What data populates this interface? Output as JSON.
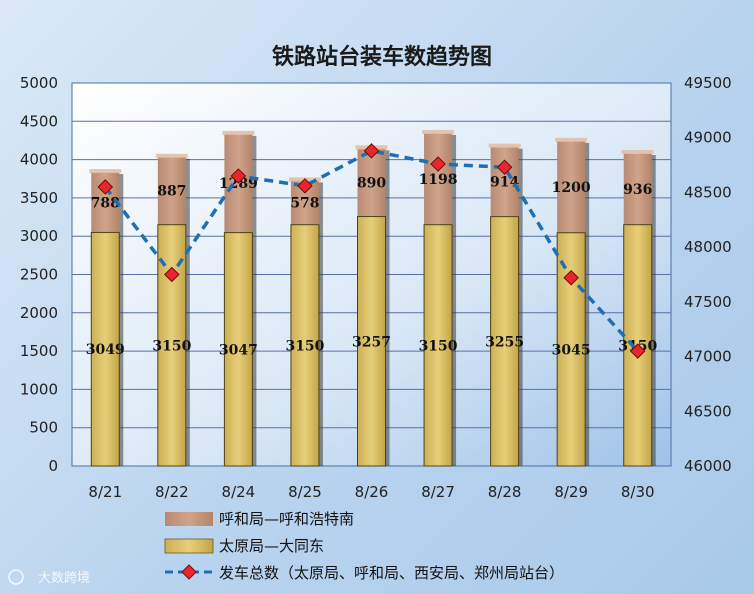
{
  "chart_data": {
    "type": "bar",
    "title": "铁路站台装车数趋势图",
    "categories": [
      "8/21",
      "8/22",
      "8/24",
      "8/25",
      "8/26",
      "8/27",
      "8/28",
      "8/29",
      "8/30"
    ],
    "series": [
      {
        "name": "太原局—大同东",
        "kind": "stacked-bar",
        "axis": "left",
        "color": "#d9bd5c",
        "values": [
          3049,
          3150,
          3047,
          3150,
          3257,
          3150,
          3255,
          3045,
          3150
        ]
      },
      {
        "name": "呼和局—呼和浩特南",
        "kind": "stacked-bar",
        "axis": "left",
        "color": "#c49880",
        "values": [
          788,
          887,
          1289,
          578,
          890,
          1198,
          914,
          1200,
          936
        ]
      },
      {
        "name": "发车总数（太原局、呼和局、西安局、郑州局站台）",
        "kind": "line",
        "axis": "right",
        "color": "#1f6fb5",
        "marker_color": "#e8262d",
        "values": [
          48550,
          47750,
          48650,
          48560,
          48880,
          48760,
          48730,
          47720,
          47050
        ]
      }
    ],
    "left_axis": {
      "min": 0,
      "max": 5000,
      "step": 500,
      "ticks": [
        "0",
        "500",
        "1000",
        "1500",
        "2000",
        "2500",
        "3000",
        "3500",
        "4000",
        "4500",
        "5000"
      ]
    },
    "right_axis": {
      "min": 46000,
      "max": 49500,
      "step": 500,
      "ticks": [
        "46000",
        "46500",
        "47000",
        "47500",
        "48000",
        "48500",
        "49000",
        "49500"
      ]
    },
    "grid": true,
    "legend_position": "bottom"
  },
  "watermark": "大数跨境"
}
